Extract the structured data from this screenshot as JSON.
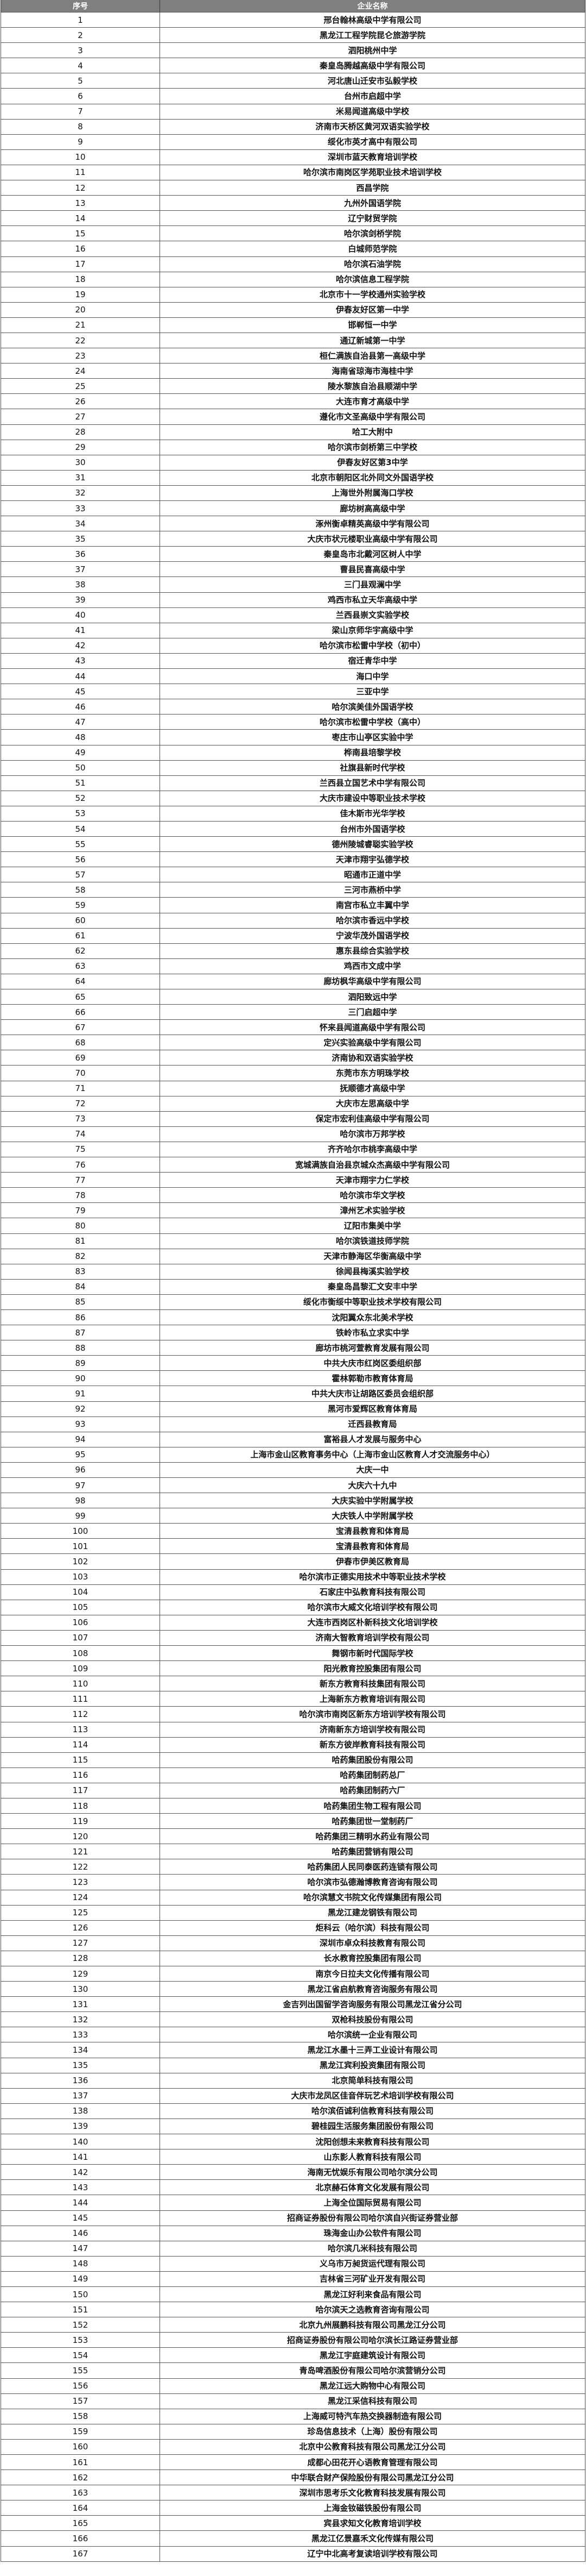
{
  "header": {
    "col_index": "序号",
    "col_name": "企业名称"
  },
  "rows": [
    "邢台翰林高级中学有限公司",
    "黑龙江工程学院昆仑旅游学院",
    "泗阳桃州中学",
    "秦皇岛腾越高级中学有限公司",
    "河北唐山迁安市弘毅学校",
    "台州市启超中学",
    "米易闻道高级中学校",
    "济南市天桥区黄河双语实验学校",
    "绥化市英才高中有限公司",
    "深圳市蓝天教育培训学校",
    "哈尔滨市南岗区学苑职业技术培训学校",
    "西昌学院",
    "九州外国语学院",
    "辽宁财贸学院",
    "哈尔滨剑桥学院",
    "白城师范学院",
    "哈尔滨石油学院",
    "哈尔滨信息工程学院",
    "北京市十一学校通州实验学校",
    "伊春友好区第一中学",
    "邯郸恒一中学",
    "通辽新城第一中学",
    "桓仁满族自治县第一高级中学",
    "海南省琼海市海桂中学",
    "陵水黎族自治县顺湖中学",
    "大连市育才高级中学",
    "遵化市文圣高级中学有限公司",
    "哈工大附中",
    "哈尔滨市剑桥第三中学校",
    "伊春友好区第3中学",
    "北京市朝阳区北外同文外国语学校",
    "上海世外附属海口学校",
    "廊坊树高高级中学",
    "涿州衡卓精英高级中学有限公司",
    "大庆市状元楼职业高级中学有限公司",
    "秦皇岛市北戴河区树人中学",
    "曹县民喜高级中学",
    "三门县观澜中学",
    "鸡西市私立天华高级中学",
    "兰西县崇文实验学校",
    "梁山京师华宇高级中学",
    "哈尔滨市松雷中学校（初中）",
    "宿迁青华中学",
    "海口中学",
    "三亚中学",
    "哈尔滨美佳外国语学校",
    "哈尔滨市松雷中学校（高中）",
    "枣庄市山亭区实验中学",
    "桦南县培黎学校",
    "社旗县新时代学校",
    "兰西县立国艺术中学有限公司",
    "大庆市建设中等职业技术学校",
    "佳木斯市光华学校",
    "台州市外国语学校",
    "德州陵城睿聪实验学校",
    "天津市翔宇弘德学校",
    "昭通市正道中学",
    "三河市燕桥中学",
    "南宫市私立丰翼中学",
    "哈尔滨市香远中学校",
    "宁波华茂外国语学校",
    "惠东县综合实验学校",
    "鸡西市文成中学",
    "廊坊枫华高级中学有限公司",
    "泗阳致远中学",
    "三门启超中学",
    "怀来县闻道高级中学有限公司",
    "定兴实验高级中学有限公司",
    "济南协和双语实验学校",
    "东莞市东方明珠学校",
    "抚顺德才高级中学",
    "大庆市左思高级中学",
    "保定市宏利佳高级中学有限公司",
    "哈尔滨市万邦学校",
    "齐齐哈尔市桃李高级中学",
    "宽城满族自治县京城众杰高级中学有限公司",
    "天津市翔宇力仁学校",
    "哈尔滨市华文学校",
    "漳州艺术实验学校",
    "辽阳市集美中学",
    "哈尔滨铁道技师学院",
    "天津市静海区华衡高级中学",
    "徐闻县梅溪实验学校",
    "秦皇岛昌黎汇文安丰中学",
    "绥化市衡绥中等职业技术学校有限公司",
    "沈阳翼众东北美术学校",
    "铁岭市私立求实中学",
    "廊坊市桃河萱教育发展有限公司",
    "中共大庆市红岗区委组织部",
    "霍林郭勒市教育体育局",
    "中共大庆市让胡路区委员会组织部",
    "黑河市爱辉区教育体育局",
    "迁西县教育局",
    "富裕县人才发展与服务中心",
    "上海市金山区教育事务中心（上海市金山区教育人才交流服务中心）",
    "大庆一中",
    "大庆六十九中",
    "大庆实验中学附属学校",
    "大庆铁人中学附属学校",
    "宝清县教育和体育局",
    "宝清县教育和体育局",
    "伊春市伊美区教育局",
    "哈尔滨市正德实用技术中等职业技术学校",
    "石家庄中弘教育科技有限公司",
    "哈尔滨市大威文化培训学校有限公司",
    "大连市西岗区朴新科技文化培训学校",
    "济南大智教育培训学校有限公司",
    "舞钢市新时代国际学校",
    "阳光教育控股集团有限公司",
    "新东方教育科技集团有限公司",
    "上海新东方教育培训有限公司",
    "哈尔滨市南岗区新东方培训学校有限公司",
    "济南新东方培训学校有限公司",
    "新东方彼岸教育科技有限公司",
    "哈药集团股份有限公司",
    "哈药集团制药总厂",
    "哈药集团制药六厂",
    "哈药集团生物工程有限公司",
    "哈药集团世一堂制药厂",
    "哈药集团三精明水药业有限公司",
    "哈药集团营销有限公司",
    "哈药集团人民同泰医药连锁有限公司",
    "哈尔滨市弘德瀚博教育咨询有限公司",
    "哈尔滨慧文书院文化传媒集团有限公司",
    "黑龙江建龙钢铁有限公司",
    "炬科云（哈尔滨）科技有限公司",
    "深圳市卓众科技教育有限公司",
    "长水教育控股集团有限公司",
    "南京今日拉夫文化传播有限公司",
    "黑龙江省启航教育咨询服务有限公司",
    "金吉列出国留学咨询服务有限公司黑龙江省分公司",
    "双枪科技股份有限公司",
    "哈尔滨统一企业有限公司",
    "黑龙江水墨十三弄工业设计有限公司",
    "黑龙江宾利投资集团有限公司",
    "北京简单科技有限公司",
    "大庆市龙凤区佳音伴玩艺术培训学校有限公司",
    "哈尔滨佰诚利信教育科技有限公司",
    "碧桂园生活服务集团股份有限公司",
    "沈阳创想未来教育科技有限公司",
    "山东影人教育科技有限公司",
    "海南无忧娱乐有限公司哈尔滨分公司",
    "北京赫石体育文化发展有限公司",
    "上海全位国际贸易有限公司",
    "招商证券股份有限公司哈尔滨自兴街证券营业部",
    "珠海金山办公软件有限公司",
    "哈尔滨几米科技有限公司",
    "义乌市万昶货运代理有限公司",
    "吉林省三河矿业开发有限公司",
    "黑龙江好利来食品有限公司",
    "哈尔滨天之选教育咨询有限公司",
    "北京九州展鹏科技有限公司黑龙江分公司",
    "招商证券股份有限公司哈尔滨长江路证券营业部",
    "黑龙江宇庭建筑设计有限公司",
    "青岛啤酒股份有限公司哈尔滨营销分公司",
    "黑龙江远大购物中心有限公司",
    "黑龙江采信科技有限公司",
    "上海威可特汽车热交换器制造有限公司",
    "珍岛信息技术（上海）股份有限公司",
    "北京中公教育科技有限公司黑龙江分公司",
    "成都心田花开心语教育管理有限公司",
    "中华联合财产保险股份有限公司黑龙江分公司",
    "深圳市思考乐文化教育科技发展有限公司",
    "上海金钕磁铁股份有限公司",
    "宾县求知文化教育培训学校",
    "黑龙江亿景嘉禾文化传媒有限公司",
    "辽宁中北高考复读培训学校有限公司"
  ]
}
